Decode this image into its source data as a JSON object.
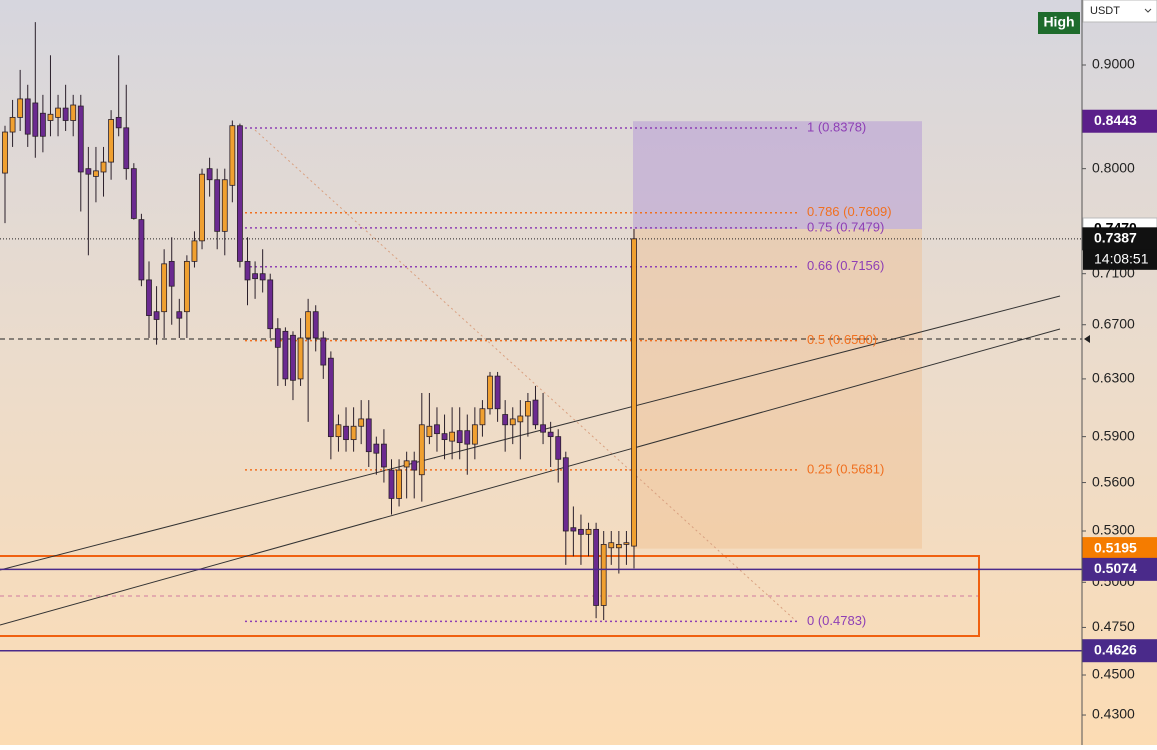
{
  "chart": {
    "type": "candlestick",
    "log": true,
    "ylim": [
      0.4156,
      0.969
    ],
    "up_color": "#f0a030",
    "down_color": "#6b2a90",
    "yticks": [
      {
        "value": 0.9,
        "label": "0.9000"
      },
      {
        "value": 0.8,
        "label": "0.8000"
      },
      {
        "value": 0.71,
        "label": "0.7100"
      },
      {
        "value": 0.67,
        "label": "0.6700"
      },
      {
        "value": 0.63,
        "label": "0.6300"
      },
      {
        "value": 0.59,
        "label": "0.5900"
      },
      {
        "value": 0.56,
        "label": "0.5600"
      },
      {
        "value": 0.53,
        "label": "0.5300"
      },
      {
        "value": 0.5,
        "label": "0.5000"
      },
      {
        "value": 0.475,
        "label": "0.4750"
      },
      {
        "value": 0.45,
        "label": "0.4500"
      },
      {
        "value": 0.43,
        "label": "0.4300"
      }
    ],
    "candles": [
      [
        0.796,
        0.84,
        0.752,
        0.834
      ],
      [
        0.834,
        0.865,
        0.82,
        0.848
      ],
      [
        0.848,
        0.895,
        0.835,
        0.866
      ],
      [
        0.866,
        0.88,
        0.82,
        0.832
      ],
      [
        0.862,
        0.945,
        0.81,
        0.83
      ],
      [
        0.852,
        0.87,
        0.815,
        0.83
      ],
      [
        0.845,
        0.91,
        0.83,
        0.851
      ],
      [
        0.848,
        0.87,
        0.83,
        0.857
      ],
      [
        0.857,
        0.88,
        0.835,
        0.845
      ],
      [
        0.845,
        0.87,
        0.83,
        0.86
      ],
      [
        0.859,
        0.87,
        0.762,
        0.797
      ],
      [
        0.8,
        0.82,
        0.725,
        0.795
      ],
      [
        0.793,
        0.82,
        0.77,
        0.798
      ],
      [
        0.797,
        0.82,
        0.775,
        0.806
      ],
      [
        0.806,
        0.855,
        0.79,
        0.846
      ],
      [
        0.848,
        0.91,
        0.83,
        0.838
      ],
      [
        0.838,
        0.88,
        0.79,
        0.8
      ],
      [
        0.8,
        0.805,
        0.755,
        0.756
      ],
      [
        0.755,
        0.76,
        0.7,
        0.705
      ],
      [
        0.705,
        0.72,
        0.66,
        0.677
      ],
      [
        0.68,
        0.7,
        0.655,
        0.674
      ],
      [
        0.68,
        0.73,
        0.66,
        0.718
      ],
      [
        0.72,
        0.74,
        0.67,
        0.7
      ],
      [
        0.68,
        0.69,
        0.66,
        0.675
      ],
      [
        0.68,
        0.725,
        0.66,
        0.72
      ],
      [
        0.72,
        0.745,
        0.715,
        0.737
      ],
      [
        0.737,
        0.8,
        0.73,
        0.795
      ],
      [
        0.8,
        0.81,
        0.775,
        0.79
      ],
      [
        0.79,
        0.8,
        0.73,
        0.745
      ],
      [
        0.745,
        0.8,
        0.725,
        0.79
      ],
      [
        0.785,
        0.845,
        0.77,
        0.84
      ],
      [
        0.84,
        0.842,
        0.715,
        0.72
      ],
      [
        0.72,
        0.74,
        0.685,
        0.705
      ],
      [
        0.71,
        0.72,
        0.69,
        0.706
      ],
      [
        0.71,
        0.73,
        0.695,
        0.705
      ],
      [
        0.705,
        0.71,
        0.66,
        0.667
      ],
      [
        0.667,
        0.675,
        0.625,
        0.653
      ],
      [
        0.665,
        0.668,
        0.625,
        0.63
      ],
      [
        0.662,
        0.665,
        0.615,
        0.629
      ],
      [
        0.63,
        0.675,
        0.625,
        0.66
      ],
      [
        0.66,
        0.69,
        0.6,
        0.68
      ],
      [
        0.68,
        0.685,
        0.65,
        0.66
      ],
      [
        0.66,
        0.665,
        0.63,
        0.64
      ],
      [
        0.645,
        0.65,
        0.575,
        0.59
      ],
      [
        0.59,
        0.605,
        0.58,
        0.598
      ],
      [
        0.597,
        0.61,
        0.58,
        0.588
      ],
      [
        0.588,
        0.61,
        0.58,
        0.597
      ],
      [
        0.597,
        0.615,
        0.585,
        0.602
      ],
      [
        0.602,
        0.615,
        0.57,
        0.58
      ],
      [
        0.585,
        0.59,
        0.565,
        0.579
      ],
      [
        0.585,
        0.595,
        0.56,
        0.57
      ],
      [
        0.568,
        0.575,
        0.54,
        0.55
      ],
      [
        0.55,
        0.575,
        0.545,
        0.568
      ],
      [
        0.57,
        0.58,
        0.55,
        0.574
      ],
      [
        0.574,
        0.58,
        0.55,
        0.568
      ],
      [
        0.565,
        0.62,
        0.548,
        0.598
      ],
      [
        0.59,
        0.62,
        0.585,
        0.597
      ],
      [
        0.598,
        0.61,
        0.58,
        0.592
      ],
      [
        0.592,
        0.605,
        0.575,
        0.588
      ],
      [
        0.587,
        0.61,
        0.575,
        0.593
      ],
      [
        0.594,
        0.61,
        0.575,
        0.586
      ],
      [
        0.594,
        0.605,
        0.565,
        0.585
      ],
      [
        0.585,
        0.61,
        0.575,
        0.598
      ],
      [
        0.598,
        0.615,
        0.59,
        0.609
      ],
      [
        0.609,
        0.635,
        0.605,
        0.632
      ],
      [
        0.632,
        0.635,
        0.6,
        0.609
      ],
      [
        0.605,
        0.615,
        0.58,
        0.598
      ],
      [
        0.598,
        0.61,
        0.585,
        0.602
      ],
      [
        0.6,
        0.615,
        0.575,
        0.604
      ],
      [
        0.604,
        0.62,
        0.59,
        0.614
      ],
      [
        0.615,
        0.625,
        0.595,
        0.598
      ],
      [
        0.598,
        0.62,
        0.585,
        0.593
      ],
      [
        0.593,
        0.6,
        0.57,
        0.59
      ],
      [
        0.59,
        0.595,
        0.56,
        0.575
      ],
      [
        0.576,
        0.58,
        0.51,
        0.53
      ],
      [
        0.532,
        0.545,
        0.515,
        0.53
      ],
      [
        0.531,
        0.54,
        0.51,
        0.528
      ],
      [
        0.528,
        0.535,
        0.515,
        0.531
      ],
      [
        0.531,
        0.535,
        0.48,
        0.487
      ],
      [
        0.487,
        0.53,
        0.479,
        0.522
      ],
      [
        0.52,
        0.53,
        0.51,
        0.523
      ],
      [
        0.52,
        0.53,
        0.505,
        0.522
      ],
      [
        0.522,
        0.53,
        0.51,
        0.523
      ],
      [
        0.521,
        0.747,
        0.508,
        0.7387
      ]
    ],
    "fib_levels": [
      {
        "label": "1 (0.8378)",
        "value": 0.8378,
        "color": "#8e3fb5"
      },
      {
        "label": "0.786 (0.7609)",
        "value": 0.7609,
        "color": "#f07020"
      },
      {
        "label": "0.75 (0.7479)",
        "value": 0.7479,
        "color": "#8e3fb5"
      },
      {
        "label": "0.66 (0.7156)",
        "value": 0.7156,
        "color": "#8e3fb5"
      },
      {
        "label": "0.5 (0.6580)",
        "value": 0.658,
        "color": "#f07020"
      },
      {
        "label": "0.25 (0.5681)",
        "value": 0.5681,
        "color": "#f07020"
      },
      {
        "label": "0 (0.4783)",
        "value": 0.4783,
        "color": "#8e3fb5"
      }
    ],
    "price_tags": [
      {
        "value": 0.8443,
        "color": "#5b1f8a",
        "text_color": "#ffffff"
      },
      {
        "value": 0.747,
        "label": "0.7470",
        "color": "#ffffff",
        "text_color": "#000000"
      },
      {
        "value": 0.7387,
        "color": "#111111",
        "text_color": "#ffffff"
      },
      {
        "value": 0.5195,
        "color": "#f57c00",
        "text_color": "#ffffff",
        "line": false
      },
      {
        "value": 0.5074,
        "color": "#4a2a8a",
        "text_color": "#ffffff",
        "line": true
      },
      {
        "value": 0.4626,
        "color": "#4a2a8a",
        "text_color": "#ffffff",
        "line": true
      }
    ],
    "countdown": "14:08:51",
    "high_label": "High",
    "currency": "USDT"
  }
}
